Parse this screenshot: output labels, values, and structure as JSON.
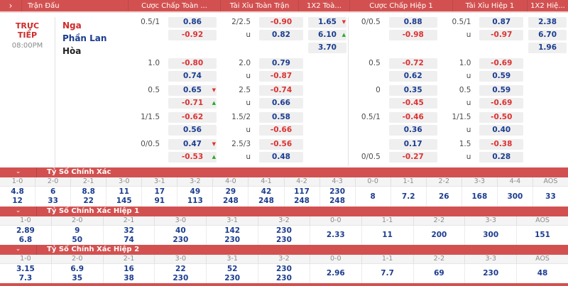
{
  "colors": {
    "header_red": "#d25150",
    "odds_blue": "#1b3c8f",
    "odds_red": "#dc3232",
    "arrow_down_red": "#e03030",
    "arrow_up_green": "#2ba52b",
    "box_bg": "#efefef"
  },
  "icons": {
    "header_chevron": "›",
    "section_chevron": "⌄",
    "arrow_down": "▼",
    "arrow_up": "▲"
  },
  "header": {
    "chevron": "›",
    "columns": [
      "Trận Đấu",
      "Cược Chấp Toàn ...",
      "Tài Xỉu Toàn Trận",
      "1X2 Toà...",
      "Cược Chấp Hiệp 1",
      "Tài Xỉu Hiệp 1",
      "1X2 Hiệ..."
    ]
  },
  "match": {
    "status": "TRỰC TIẾP",
    "time": "08:00PM",
    "teams": [
      {
        "name": "Nga",
        "color": "red"
      },
      {
        "name": "Phần Lan",
        "color": "blue"
      },
      {
        "name": "Hòa",
        "color": "dark"
      }
    ]
  },
  "odds_rows": [
    {
      "halves": [
        {
          "hcp_label": "0.5/1",
          "hcp_label_line": 0,
          "hcp": [
            {
              "value": "0.86",
              "color": "blue"
            },
            {
              "value": "-0.92",
              "color": "red"
            }
          ],
          "ou_labels": [
            "2/2.5",
            "u"
          ],
          "ou": [
            {
              "value": "-0.90",
              "color": "red"
            },
            {
              "value": "0.82",
              "color": "blue"
            }
          ],
          "x12": [
            {
              "value": "1.65",
              "color": "blue",
              "trend": "down"
            },
            {
              "value": "6.10",
              "color": "blue",
              "trend": "up"
            },
            {
              "value": "3.70",
              "color": "blue"
            }
          ]
        },
        {
          "hcp_label": "0/0.5",
          "hcp_label_line": 0,
          "hcp": [
            {
              "value": "0.88",
              "color": "blue"
            },
            {
              "value": "-0.98",
              "color": "red"
            }
          ],
          "ou_labels": [
            "0.5/1",
            "u"
          ],
          "ou": [
            {
              "value": "0.87",
              "color": "blue"
            },
            {
              "value": "-0.97",
              "color": "red"
            }
          ],
          "x12": [
            {
              "value": "2.38",
              "color": "blue"
            },
            {
              "value": "6.70",
              "color": "blue"
            },
            {
              "value": "1.96",
              "color": "blue"
            }
          ]
        }
      ]
    },
    {
      "halves": [
        {
          "hcp_label": "1.0",
          "hcp_label_line": 0,
          "hcp": [
            {
              "value": "-0.80",
              "color": "red"
            },
            {
              "value": "0.74",
              "color": "blue"
            }
          ],
          "ou_labels": [
            "2.0",
            "u"
          ],
          "ou": [
            {
              "value": "0.79",
              "color": "blue"
            },
            {
              "value": "-0.87",
              "color": "red"
            }
          ],
          "x12": []
        },
        {
          "hcp_label": "0.5",
          "hcp_label_line": 0,
          "hcp": [
            {
              "value": "-0.72",
              "color": "red"
            },
            {
              "value": "0.62",
              "color": "blue"
            }
          ],
          "ou_labels": [
            "1.0",
            "u"
          ],
          "ou": [
            {
              "value": "-0.69",
              "color": "red"
            },
            {
              "value": "0.59",
              "color": "blue"
            }
          ],
          "x12": []
        }
      ]
    },
    {
      "halves": [
        {
          "hcp_label": "0.5",
          "hcp_label_line": 0,
          "hcp": [
            {
              "value": "0.65",
              "color": "blue",
              "trend": "down"
            },
            {
              "value": "-0.71",
              "color": "red",
              "trend": "up"
            }
          ],
          "ou_labels": [
            "2.5",
            "u"
          ],
          "ou": [
            {
              "value": "-0.74",
              "color": "red"
            },
            {
              "value": "0.66",
              "color": "blue"
            }
          ],
          "x12": []
        },
        {
          "hcp_label": "0",
          "hcp_label_line": 0,
          "hcp": [
            {
              "value": "0.35",
              "color": "blue"
            },
            {
              "value": "-0.45",
              "color": "red"
            }
          ],
          "ou_labels": [
            "0.5",
            "u"
          ],
          "ou": [
            {
              "value": "0.59",
              "color": "blue"
            },
            {
              "value": "-0.69",
              "color": "red"
            }
          ],
          "x12": []
        }
      ]
    },
    {
      "halves": [
        {
          "hcp_label": "1/1.5",
          "hcp_label_line": 0,
          "hcp": [
            {
              "value": "-0.62",
              "color": "red"
            },
            {
              "value": "0.56",
              "color": "blue"
            }
          ],
          "ou_labels": [
            "1.5/2",
            "u"
          ],
          "ou": [
            {
              "value": "0.58",
              "color": "blue"
            },
            {
              "value": "-0.66",
              "color": "red"
            }
          ],
          "x12": []
        },
        {
          "hcp_label": "0.5/1",
          "hcp_label_line": 0,
          "hcp": [
            {
              "value": "-0.46",
              "color": "red"
            },
            {
              "value": "0.36",
              "color": "blue"
            }
          ],
          "ou_labels": [
            "1/1.5",
            "u"
          ],
          "ou": [
            {
              "value": "-0.50",
              "color": "red"
            },
            {
              "value": "0.40",
              "color": "blue"
            }
          ],
          "x12": []
        }
      ]
    },
    {
      "halves": [
        {
          "hcp_label": "0/0.5",
          "hcp_label_line": 0,
          "hcp": [
            {
              "value": "0.47",
              "color": "blue",
              "trend": "down"
            },
            {
              "value": "-0.53",
              "color": "red",
              "trend": "up"
            }
          ],
          "ou_labels": [
            "2.5/3",
            "u"
          ],
          "ou": [
            {
              "value": "-0.56",
              "color": "red"
            },
            {
              "value": "0.48",
              "color": "blue"
            }
          ],
          "x12": []
        },
        {
          "hcp_label": "0/0.5",
          "hcp_label_line": 1,
          "hcp": [
            {
              "value": "0.17",
              "color": "blue"
            },
            {
              "value": "-0.27",
              "color": "red"
            }
          ],
          "ou_labels": [
            "1.5",
            "u"
          ],
          "ou": [
            {
              "value": "-0.38",
              "color": "red"
            },
            {
              "value": "0.28",
              "color": "blue"
            }
          ],
          "x12": []
        }
      ]
    }
  ],
  "score_sections": [
    {
      "title": "Tỷ Số Chính Xác",
      "columns": [
        {
          "score": "1-0",
          "odds": [
            "4.8",
            "12"
          ]
        },
        {
          "score": "2-0",
          "odds": [
            "6",
            "33"
          ]
        },
        {
          "score": "2-1",
          "odds": [
            "8.8",
            "22"
          ]
        },
        {
          "score": "3-0",
          "odds": [
            "11",
            "145"
          ]
        },
        {
          "score": "3-1",
          "odds": [
            "17",
            "91"
          ]
        },
        {
          "score": "3-2",
          "odds": [
            "49",
            "113"
          ]
        },
        {
          "score": "4-0",
          "odds": [
            "29",
            "248"
          ]
        },
        {
          "score": "4-1",
          "odds": [
            "42",
            "248"
          ]
        },
        {
          "score": "4-2",
          "odds": [
            "117",
            "248"
          ]
        },
        {
          "score": "4-3",
          "odds": [
            "230",
            "248"
          ]
        },
        {
          "score": "0-0",
          "odds": [
            "8"
          ]
        },
        {
          "score": "1-1",
          "odds": [
            "7.2"
          ]
        },
        {
          "score": "2-2",
          "odds": [
            "26"
          ]
        },
        {
          "score": "3-3",
          "odds": [
            "168"
          ]
        },
        {
          "score": "4-4",
          "odds": [
            "300"
          ]
        },
        {
          "score": "AOS",
          "odds": [
            "33"
          ]
        }
      ]
    },
    {
      "title": "Tỷ Số Chính Xác Hiệp 1",
      "columns": [
        {
          "score": "1-0",
          "odds": [
            "2.89",
            "6.8"
          ]
        },
        {
          "score": "2-0",
          "odds": [
            "9",
            "50"
          ]
        },
        {
          "score": "2-1",
          "odds": [
            "32",
            "74"
          ]
        },
        {
          "score": "3-0",
          "odds": [
            "40",
            "230"
          ]
        },
        {
          "score": "3-1",
          "odds": [
            "142",
            "230"
          ]
        },
        {
          "score": "3-2",
          "odds": [
            "230",
            "230"
          ]
        },
        {
          "score": "0-0",
          "odds": [
            "2.33"
          ]
        },
        {
          "score": "1-1",
          "odds": [
            "11"
          ]
        },
        {
          "score": "2-2",
          "odds": [
            "200"
          ]
        },
        {
          "score": "3-3",
          "odds": [
            "300"
          ]
        },
        {
          "score": "AOS",
          "odds": [
            "151"
          ]
        }
      ]
    },
    {
      "title": "Tỷ Số Chính Xác Hiệp 2",
      "columns": [
        {
          "score": "1-0",
          "odds": [
            "3.15",
            "7.3"
          ]
        },
        {
          "score": "2-0",
          "odds": [
            "6.9",
            "35"
          ]
        },
        {
          "score": "2-1",
          "odds": [
            "16",
            "38"
          ]
        },
        {
          "score": "3-0",
          "odds": [
            "22",
            "230"
          ]
        },
        {
          "score": "3-1",
          "odds": [
            "52",
            "230"
          ]
        },
        {
          "score": "3-2",
          "odds": [
            "230",
            "230"
          ]
        },
        {
          "score": "0-0",
          "odds": [
            "2.96"
          ]
        },
        {
          "score": "1-1",
          "odds": [
            "7.7"
          ]
        },
        {
          "score": "2-2",
          "odds": [
            "69"
          ]
        },
        {
          "score": "3-3",
          "odds": [
            "230"
          ]
        },
        {
          "score": "AOS",
          "odds": [
            "48"
          ]
        }
      ]
    }
  ]
}
